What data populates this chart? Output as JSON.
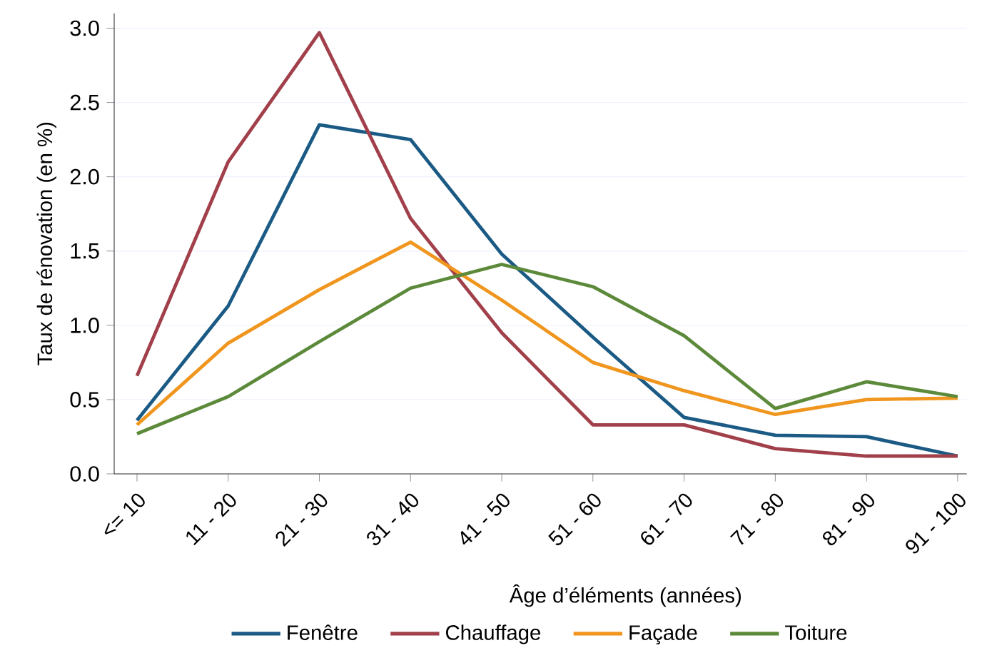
{
  "chart_data": {
    "type": "line",
    "xlabel": "Âge d’éléments (années)",
    "ylabel": "Taux de rénovation (en %)",
    "categories": [
      "<= 10",
      "11 - 20",
      "21 - 30",
      "31 - 40",
      "41 - 50",
      "51 - 60",
      "61 - 70",
      "71 - 80",
      "81 - 90",
      "91 - 100"
    ],
    "series": [
      {
        "name": "Fenêtre",
        "color": "#1a5a84",
        "values": [
          0.36,
          1.13,
          2.35,
          2.25,
          1.48,
          0.92,
          0.38,
          0.26,
          0.25,
          0.12
        ]
      },
      {
        "name": "Chauffage",
        "color": "#a1404a",
        "values": [
          0.66,
          2.1,
          2.97,
          1.72,
          0.95,
          0.33,
          0.33,
          0.17,
          0.12,
          0.12
        ]
      },
      {
        "name": "Façade",
        "color": "#f0961e",
        "values": [
          0.33,
          0.88,
          1.24,
          1.56,
          1.17,
          0.75,
          0.56,
          0.4,
          0.5,
          0.51
        ]
      },
      {
        "name": "Toiture",
        "color": "#5c8a3a",
        "values": [
          0.27,
          0.52,
          0.89,
          1.25,
          1.41,
          1.26,
          0.93,
          0.44,
          0.62,
          0.52
        ]
      }
    ],
    "ylim": [
      0,
      3.1
    ],
    "yticks": [
      {
        "value": 0,
        "label": "0.0"
      },
      {
        "value": 0.5,
        "label": "0.5"
      },
      {
        "value": 1,
        "label": "1.0"
      },
      {
        "value": 1.5,
        "label": "1.5"
      },
      {
        "value": 2,
        "label": "2.0"
      },
      {
        "value": 2.5,
        "label": "2.5"
      },
      {
        "value": 3,
        "label": "3.0"
      }
    ],
    "grid": "y",
    "legend": "bottom",
    "marker": "none",
    "line_style": "solid"
  }
}
